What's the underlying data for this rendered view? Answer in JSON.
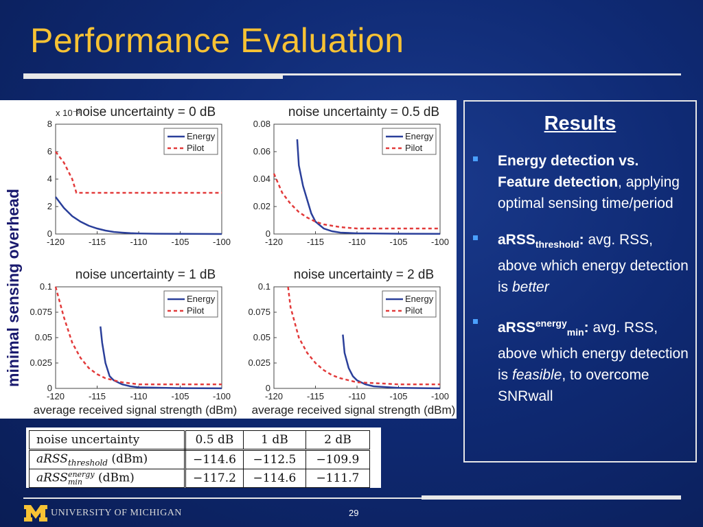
{
  "slide": {
    "title": "Performance Evaluation",
    "vertical_label": "minimal sensing overhead",
    "page_number": "29",
    "footer": "UNIVERSITY OF MICHIGAN",
    "colors": {
      "title": "#f7c234",
      "background": "#0f2a74",
      "energy": "#2a3f9a",
      "pilot": "#e23a3a"
    }
  },
  "results": {
    "heading": "Results",
    "bullets": [
      {
        "bold": "Energy detection vs. Feature detection",
        "tail": ",",
        "rest": "applying optimal sensing time/period"
      },
      {
        "bold": "aRSS",
        "sub": "threshold",
        "sep": ":",
        "rest1": " avg. RSS, above which energy detection is ",
        "rest_it": "better"
      },
      {
        "bold": "aRSS",
        "sup": "energy",
        "sub": "min",
        "sep": ":",
        "rest1": " avg. RSS, above which energy detection is ",
        "rest_it": "feasible",
        "rest2": ", to overcome SNRwall"
      }
    ]
  },
  "table": {
    "header": [
      "noise uncertainty",
      "0.5 dB",
      "1 dB",
      "2 dB"
    ],
    "rows": [
      {
        "label_main": "aRSS",
        "label_sub": "threshold",
        "label_unit": " (dBm)",
        "values": [
          "−114.6",
          "−112.5",
          "−109.9"
        ]
      },
      {
        "label_main": "aRSS",
        "label_sup": "energy",
        "label_sub": "min",
        "label_unit": " (dBm)",
        "values": [
          "−117.2",
          "−114.6",
          "−111.7"
        ]
      }
    ]
  },
  "chart_data": [
    {
      "type": "line",
      "title": "noise uncertainty = 0 dB",
      "xlabel": "",
      "ylabel": "",
      "y_exponent_label": "x 10⁻³",
      "xlim": [
        -120,
        -100
      ],
      "ylim": [
        0,
        8
      ],
      "xticks": [
        -120,
        -115,
        -110,
        -105,
        -100
      ],
      "yticks": [
        0,
        2,
        4,
        6,
        8
      ],
      "series": [
        {
          "name": "Energy",
          "x": [
            -120,
            -119,
            -118,
            -117,
            -116,
            -115,
            -114,
            -113,
            -112,
            -111,
            -110,
            -108,
            -105,
            -100
          ],
          "values": [
            2.7,
            1.9,
            1.3,
            0.9,
            0.6,
            0.4,
            0.25,
            0.15,
            0.1,
            0.06,
            0.04,
            0.02,
            0.01,
            0.0
          ]
        },
        {
          "name": "Pilot",
          "x": [
            -120,
            -119,
            -118,
            -117.5,
            -117,
            -110,
            -105,
            -100
          ],
          "values": [
            6.0,
            5.2,
            4.0,
            3.0,
            3.0,
            3.0,
            3.0,
            3.0
          ]
        }
      ],
      "legend": "top-right"
    },
    {
      "type": "line",
      "title": "noise uncertainty = 0.5 dB",
      "xlabel": "",
      "ylabel": "",
      "xlim": [
        -120,
        -100
      ],
      "ylim": [
        0,
        0.08
      ],
      "xticks": [
        -120,
        -115,
        -110,
        -105,
        -100
      ],
      "yticks": [
        0,
        0.02,
        0.04,
        0.06,
        0.08
      ],
      "series": [
        {
          "name": "Energy",
          "x": [
            -117.2,
            -117,
            -116.5,
            -116,
            -115.5,
            -115,
            -114,
            -113,
            -112,
            -110,
            -105,
            -100
          ],
          "values": [
            0.069,
            0.05,
            0.035,
            0.025,
            0.015,
            0.009,
            0.004,
            0.002,
            0.001,
            0.0005,
            0.0002,
            0.0001
          ]
        },
        {
          "name": "Pilot",
          "x": [
            -120,
            -119,
            -118,
            -117,
            -116,
            -115,
            -114,
            -113,
            -112,
            -110,
            -105,
            -100
          ],
          "values": [
            0.044,
            0.03,
            0.022,
            0.016,
            0.012,
            0.009,
            0.007,
            0.006,
            0.005,
            0.004,
            0.004,
            0.004
          ]
        }
      ],
      "legend": "top-right"
    },
    {
      "type": "line",
      "title": "noise uncertainty = 1 dB",
      "xlabel": "average received signal strength (dBm)",
      "ylabel": "",
      "xlim": [
        -120,
        -100
      ],
      "ylim": [
        0,
        0.1
      ],
      "xticks": [
        -120,
        -115,
        -110,
        -105,
        -100
      ],
      "yticks": [
        0,
        0.025,
        0.05,
        0.075,
        0.1
      ],
      "series": [
        {
          "name": "Energy",
          "x": [
            -114.6,
            -114.4,
            -114,
            -113.5,
            -113,
            -112,
            -111,
            -110,
            -105,
            -100
          ],
          "values": [
            0.061,
            0.045,
            0.025,
            0.012,
            0.008,
            0.004,
            0.002,
            0.001,
            0.0003,
            0.0001
          ]
        },
        {
          "name": "Pilot",
          "x": [
            -120,
            -119,
            -118,
            -117,
            -116,
            -115,
            -114,
            -113,
            -112,
            -110,
            -105,
            -100
          ],
          "values": [
            0.1,
            0.07,
            0.045,
            0.03,
            0.02,
            0.014,
            0.01,
            0.008,
            0.006,
            0.004,
            0.004,
            0.004
          ]
        }
      ],
      "legend": "top-right"
    },
    {
      "type": "line",
      "title": "noise uncertainty = 2 dB",
      "xlabel": "average received signal strength (dBm)",
      "ylabel": "",
      "xlim": [
        -120,
        -100
      ],
      "ylim": [
        0,
        0.1
      ],
      "xticks": [
        -120,
        -115,
        -110,
        -105,
        -100
      ],
      "yticks": [
        0,
        0.025,
        0.05,
        0.075,
        0.1
      ],
      "series": [
        {
          "name": "Energy",
          "x": [
            -111.7,
            -111.5,
            -111,
            -110.5,
            -110,
            -109,
            -108,
            -105,
            -100
          ],
          "values": [
            0.053,
            0.035,
            0.02,
            0.012,
            0.008,
            0.004,
            0.002,
            0.0005,
            0.0001
          ]
        },
        {
          "name": "Pilot",
          "x": [
            -118.3,
            -118,
            -117,
            -116,
            -115,
            -114,
            -113,
            -112,
            -111,
            -110,
            -105,
            -100
          ],
          "values": [
            0.1,
            0.08,
            0.05,
            0.035,
            0.025,
            0.018,
            0.013,
            0.01,
            0.008,
            0.006,
            0.004,
            0.004
          ]
        }
      ],
      "legend": "top-right"
    }
  ]
}
